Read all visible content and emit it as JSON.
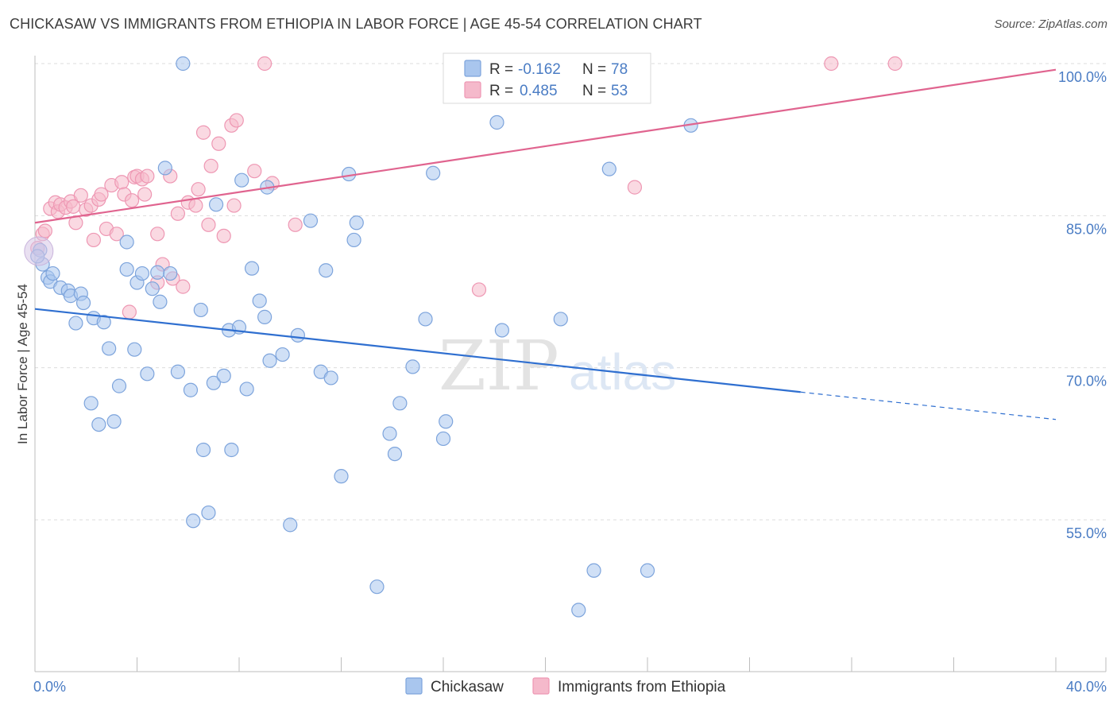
{
  "header": {
    "title": "CHICKASAW VS IMMIGRANTS FROM ETHIOPIA IN LABOR FORCE | AGE 45-54 CORRELATION CHART",
    "source": "Source: ZipAtlas.com"
  },
  "watermark": {
    "zip": "ZIP",
    "atlas": "atlas"
  },
  "chart_data": {
    "type": "scatter",
    "title": "CHICKASAW VS IMMIGRANTS FROM ETHIOPIA IN LABOR FORCE | AGE 45-54 CORRELATION CHART",
    "xlabel": "",
    "ylabel": "In Labor Force | Age 45-54",
    "xlim": [
      0,
      40
    ],
    "ylim": [
      40,
      101.5
    ],
    "x_tick_labels": [
      {
        "value": 0,
        "label": "0.0%"
      },
      {
        "value": 40,
        "label": "40.0%"
      }
    ],
    "y_tick_labels": [
      {
        "value": 55,
        "label": "55.0%"
      },
      {
        "value": 70,
        "label": "70.0%"
      },
      {
        "value": 85,
        "label": "85.0%"
      },
      {
        "value": 100,
        "label": "100.0%"
      }
    ],
    "grid": true,
    "legend_position": "top-center",
    "series": [
      {
        "name": "Chickasaw",
        "color": "#a9c6ee",
        "stroke": "#7da4dc",
        "r_label": "R =",
        "r_value": "-0.162",
        "n_label": "N =",
        "n_value": "78",
        "trend": {
          "x_start": 0,
          "y_start": 75.8,
          "x_solid_end": 30,
          "y_solid_end": 67.6,
          "x_end": 40,
          "y_end": 64.9
        },
        "points": [
          [
            0.2,
            81.6
          ],
          [
            0.3,
            80.2
          ],
          [
            0.5,
            78.9
          ],
          [
            0.6,
            78.5
          ],
          [
            0.7,
            79.3
          ],
          [
            1.0,
            77.9
          ],
          [
            1.3,
            77.6
          ],
          [
            1.4,
            77.1
          ],
          [
            1.6,
            74.4
          ],
          [
            1.8,
            77.3
          ],
          [
            1.9,
            76.4
          ],
          [
            2.2,
            66.5
          ],
          [
            2.3,
            74.9
          ],
          [
            2.5,
            64.4
          ],
          [
            2.7,
            74.5
          ],
          [
            2.9,
            71.9
          ],
          [
            3.1,
            64.7
          ],
          [
            3.3,
            68.2
          ],
          [
            3.6,
            82.4
          ],
          [
            3.6,
            79.7
          ],
          [
            3.9,
            71.8
          ],
          [
            4.0,
            78.4
          ],
          [
            4.2,
            79.3
          ],
          [
            4.4,
            69.4
          ],
          [
            4.6,
            77.8
          ],
          [
            4.8,
            79.4
          ],
          [
            4.9,
            76.5
          ],
          [
            5.1,
            89.7
          ],
          [
            5.3,
            79.3
          ],
          [
            5.6,
            69.6
          ],
          [
            5.8,
            100.0
          ],
          [
            6.1,
            67.8
          ],
          [
            6.2,
            54.9
          ],
          [
            6.5,
            75.7
          ],
          [
            6.6,
            61.9
          ],
          [
            6.8,
            55.7
          ],
          [
            7.0,
            68.5
          ],
          [
            7.1,
            86.1
          ],
          [
            7.4,
            69.2
          ],
          [
            7.6,
            73.7
          ],
          [
            7.7,
            61.9
          ],
          [
            8.0,
            74.0
          ],
          [
            8.1,
            88.5
          ],
          [
            8.3,
            67.9
          ],
          [
            8.5,
            79.8
          ],
          [
            8.8,
            76.6
          ],
          [
            9.0,
            75.0
          ],
          [
            9.1,
            87.8
          ],
          [
            9.2,
            70.7
          ],
          [
            9.7,
            71.3
          ],
          [
            10.0,
            54.5
          ],
          [
            10.3,
            73.2
          ],
          [
            10.8,
            84.5
          ],
          [
            11.2,
            69.6
          ],
          [
            11.4,
            79.6
          ],
          [
            11.6,
            69.0
          ],
          [
            12.0,
            59.3
          ],
          [
            12.3,
            89.1
          ],
          [
            12.5,
            82.6
          ],
          [
            12.6,
            84.3
          ],
          [
            13.4,
            48.4
          ],
          [
            13.9,
            63.5
          ],
          [
            14.1,
            61.5
          ],
          [
            14.3,
            66.5
          ],
          [
            14.8,
            70.1
          ],
          [
            15.3,
            74.8
          ],
          [
            15.6,
            89.2
          ],
          [
            16.0,
            63.0
          ],
          [
            16.1,
            64.7
          ],
          [
            18.1,
            94.2
          ],
          [
            18.3,
            73.7
          ],
          [
            20.6,
            74.8
          ],
          [
            21.3,
            46.1
          ],
          [
            21.9,
            50.0
          ],
          [
            22.5,
            89.6
          ],
          [
            24.0,
            50.0
          ],
          [
            25.7,
            93.9
          ],
          [
            0.1,
            81.0
          ]
        ]
      },
      {
        "name": "Immigrants from Ethiopia",
        "color": "#f5b9cb",
        "stroke": "#ee97b3",
        "r_label": "R =",
        "r_value": "0.485",
        "n_label": "N =",
        "n_value": "53",
        "trend": {
          "x_start": 0,
          "y_start": 84.3,
          "x_solid_end": 40,
          "y_solid_end": 99.4,
          "x_end": 40,
          "y_end": 99.4
        },
        "points": [
          [
            0.1,
            81.8
          ],
          [
            0.3,
            83.2
          ],
          [
            0.4,
            83.5
          ],
          [
            0.6,
            85.7
          ],
          [
            0.8,
            86.3
          ],
          [
            0.9,
            85.4
          ],
          [
            1.0,
            86.1
          ],
          [
            1.2,
            85.8
          ],
          [
            1.4,
            86.4
          ],
          [
            1.5,
            85.9
          ],
          [
            1.6,
            84.3
          ],
          [
            1.8,
            87.0
          ],
          [
            2.0,
            85.6
          ],
          [
            2.2,
            86.0
          ],
          [
            2.3,
            82.6
          ],
          [
            2.5,
            86.6
          ],
          [
            2.6,
            87.1
          ],
          [
            2.8,
            83.7
          ],
          [
            3.0,
            88.0
          ],
          [
            3.2,
            83.2
          ],
          [
            3.4,
            88.3
          ],
          [
            3.5,
            87.1
          ],
          [
            3.7,
            75.5
          ],
          [
            3.8,
            86.5
          ],
          [
            3.9,
            88.8
          ],
          [
            4.0,
            88.9
          ],
          [
            4.2,
            88.6
          ],
          [
            4.3,
            87.1
          ],
          [
            4.4,
            88.9
          ],
          [
            4.8,
            78.4
          ],
          [
            4.8,
            83.2
          ],
          [
            5.0,
            80.2
          ],
          [
            5.3,
            88.9
          ],
          [
            5.4,
            78.8
          ],
          [
            5.6,
            85.2
          ],
          [
            5.8,
            78.0
          ],
          [
            6.0,
            86.3
          ],
          [
            6.3,
            86.0
          ],
          [
            6.4,
            87.6
          ],
          [
            6.6,
            93.2
          ],
          [
            6.8,
            84.1
          ],
          [
            6.9,
            89.9
          ],
          [
            7.2,
            92.1
          ],
          [
            7.4,
            83.0
          ],
          [
            7.7,
            93.9
          ],
          [
            7.8,
            86.0
          ],
          [
            7.9,
            94.4
          ],
          [
            8.6,
            89.4
          ],
          [
            9.0,
            100.0
          ],
          [
            9.3,
            88.2
          ],
          [
            10.2,
            84.1
          ],
          [
            17.4,
            77.7
          ],
          [
            23.5,
            87.8
          ]
        ]
      }
    ],
    "extra_points_pink": [
      [
        31.2,
        100.0
      ],
      [
        33.7,
        100.0
      ]
    ]
  }
}
